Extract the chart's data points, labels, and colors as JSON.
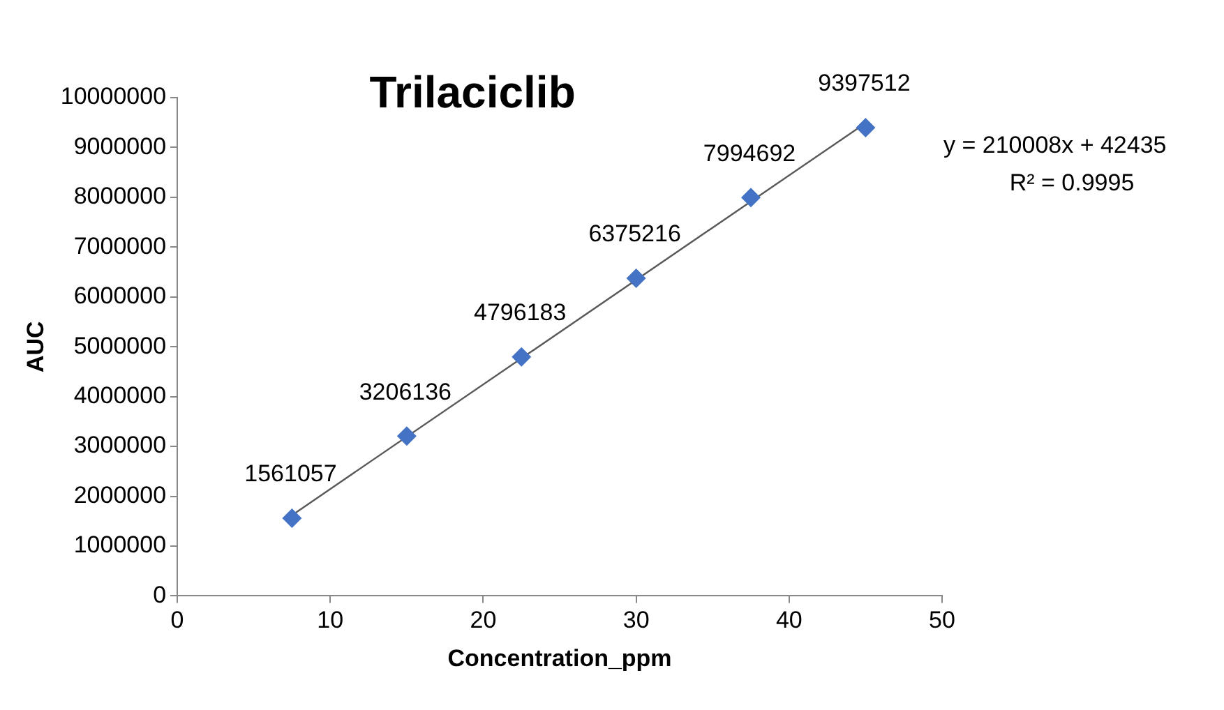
{
  "chart_data": {
    "type": "scatter",
    "title": "Trilaciclib",
    "xlabel": "Concentration_ppm",
    "ylabel": "AUC",
    "x": [
      7.5,
      15,
      22.5,
      30,
      37.5,
      45
    ],
    "series": [
      {
        "color": "#4472c4",
        "values": [
          1561057,
          3206136,
          4796183,
          6375216,
          7994692,
          9397512
        ],
        "value_labels": [
          "1561057",
          "3206136",
          "4796183",
          "6375216",
          "7994692",
          "9397512"
        ],
        "marker": "diamond"
      },
      {
        "type": "line",
        "color": "#595959",
        "x": [
          7.5,
          45
        ],
        "values": [
          1620000,
          9490000
        ],
        "marker": "none",
        "line_style": "solid"
      }
    ],
    "annotations": [
      "y = 210008x + 42435",
      "R² = 0.9995"
    ],
    "xlim": [
      0,
      50
    ],
    "xticks": [
      0,
      10,
      20,
      30,
      40,
      50
    ],
    "ylim": [
      0,
      10000000
    ],
    "yticks": [
      0,
      1000000,
      2000000,
      3000000,
      4000000,
      5000000,
      6000000,
      7000000,
      8000000,
      9000000,
      10000000
    ],
    "grid": false,
    "legend": false
  }
}
